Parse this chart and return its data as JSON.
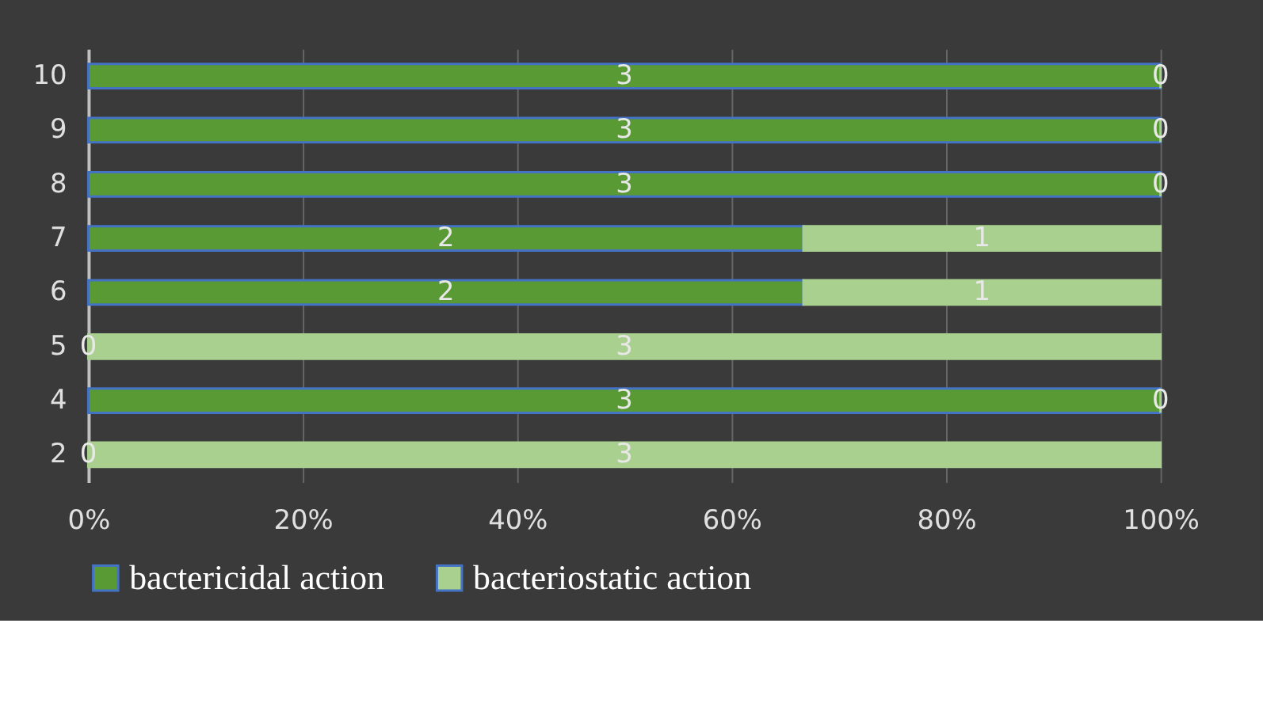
{
  "chart_data": {
    "type": "bar",
    "orientation": "horizontal",
    "stacked": true,
    "categories": [
      "10",
      "9",
      "8",
      "7",
      "6",
      "5",
      "4",
      "2"
    ],
    "series": [
      {
        "name": "bactericidal action",
        "color": "#5a9a35",
        "values": [
          100,
          100,
          100,
          66.7,
          66.7,
          0,
          100,
          0
        ]
      },
      {
        "name": "bacteriostatic action",
        "color": "#a9d08e",
        "values": [
          0,
          0,
          0,
          33.3,
          33.3,
          100,
          0,
          100
        ]
      }
    ],
    "xlim": [
      0,
      100
    ],
    "xticks": [
      {
        "value": 0,
        "label": "0%"
      },
      {
        "value": 20,
        "label": "20%"
      },
      {
        "value": 40,
        "label": "40%"
      },
      {
        "value": 60,
        "label": "60%"
      },
      {
        "value": 80,
        "label": "80%"
      },
      {
        "value": 100,
        "label": "100%"
      }
    ],
    "annotations": [
      "3",
      "3",
      "3",
      "2",
      "2",
      "0",
      "3",
      "0",
      "0",
      "0",
      "0",
      "1",
      "1",
      "3",
      "0",
      "3"
    ],
    "grid": "x",
    "legend": "bottom"
  }
}
